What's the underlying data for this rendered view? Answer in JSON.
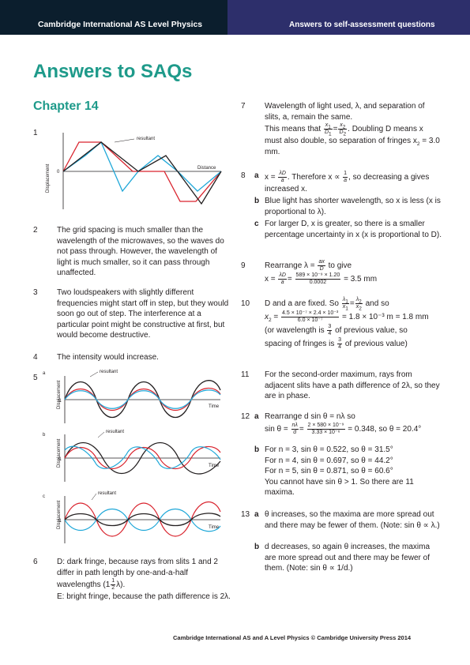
{
  "header": {
    "left": "Cambridge International AS Level Physics",
    "right": "Answers to self-assessment questions"
  },
  "title": "Answers to SAQs",
  "chapter": "Chapter 14",
  "graph_labels": {
    "displacement": "Displacement",
    "zero": "0",
    "resultant": "resultant",
    "distance": "Distance",
    "time": "Time",
    "a": "a",
    "b": "b",
    "c": "c"
  },
  "q": {
    "n1": "1",
    "n2": "2",
    "t2": "The grid spacing is much smaller than the wavelength of the microwaves, so the waves do not pass through. However, the wavelength of light is much smaller, so it can pass through unaffected.",
    "n3": "3",
    "t3": "Two loudspeakers with slightly different frequencies might start off in step, but they would soon go out of step. The interference at a particular point might be constructive at first, but would become destructive.",
    "n4": "4",
    "t4": "The intensity would increase.",
    "n5": "5",
    "n6": "6",
    "t6_1": "D: dark fringe, because rays from slits 1 and 2 differ in path length by one-and-a-half wavelengths (1",
    "t6_frac_n": "1",
    "t6_frac_d": "2",
    "t6_2": "λ).",
    "t6_3": "E: bright fringe, because the path difference is 2λ.",
    "n7": "7",
    "t7_1": "Wavelength of light used, λ, and separation of slits, a, remain the same.",
    "t7_2a": "This means that",
    "t7_2b": ". Doubling D means x must also double, so separation of fringes x",
    "t7_2c": " = 3.0 mm.",
    "n8": "8",
    "t8a_1": "x =",
    "t8a_2": ". Therefore x ∝",
    "t8a_3": ", so decreasing a gives increased x.",
    "t8b": "Blue light has shorter wavelength, so x is less (x is proportional to λ).",
    "t8c": "For larger D, x is greater, so there is a smaller percentage uncertainty in x (x is proportional to D).",
    "n9": "9",
    "t9_1": "Rearrange λ =",
    "t9_2": "to give",
    "t9_3": "x =",
    "t9_num": "589 × 10⁻⁹ × 1.20",
    "t9_den": "0.0002",
    "t9_res": "= 3.5 mm",
    "n10": "10",
    "t10_1": "D and a are fixed. So",
    "t10_2": "and so",
    "t10_num": "4.5 × 10⁻⁷ × 2.4 × 10⁻³",
    "t10_den": "6.0 × 10⁻⁷",
    "t10_res": "= 1.8 × 10⁻³ m = 1.8 mm",
    "t10_3a": "(or wavelength is",
    "t10_3b": "of previous value, so",
    "t10_4a": "spacing of fringes is",
    "t10_4b": "of previous value)",
    "n11": "11",
    "t11": "For the second-order maximum, rays from adjacent slits have a path difference of 2λ, so they are in phase.",
    "n12": "12",
    "t12a_1": "Rearrange d sin θ = nλ so",
    "t12a_2": "sin θ =",
    "t12a_num": "2 × 580 × 10⁻⁹",
    "t12a_den": "3.33 × 10⁻⁶",
    "t12a_res": "= 0.348, so θ = 20.4°",
    "t12b_1": "For n = 3, sin θ = 0.522, so θ = 31.5°",
    "t12b_2": "For n = 4, sin θ = 0.697, so θ = 44.2°",
    "t12b_3": "For n = 5, sin θ = 0.871, so θ = 60.6°",
    "t12b_4": "You cannot have sin θ > 1. So there are 11 maxima.",
    "n13": "13",
    "t13a": "θ increases, so the maxima are more spread out and there may be fewer of them. (Note: sin θ ∝ λ.)",
    "t13b": "d decreases, so again θ increases, the maxima are more spread out and there may be fewer of them. (Note: sin θ ∝ 1/d.)",
    "la": "a",
    "lb": "b",
    "lc": "c"
  },
  "footer": "Cambridge International AS and A Level Physics © Cambridge University Press 2014",
  "colors": {
    "teal": "#1e9a8a",
    "red": "#d9232d",
    "blue": "#1ea7d8",
    "black": "#231f20"
  }
}
